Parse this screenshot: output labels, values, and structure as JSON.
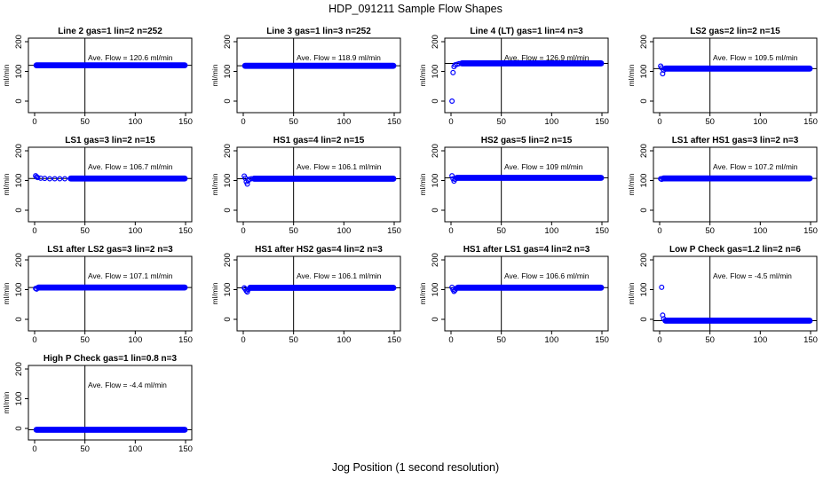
{
  "figure": {
    "title": "HDP_091211  Sample Flow Shapes",
    "xlabel": "Jog Position (1 second resolution)",
    "point_color": "#0000ff"
  },
  "chart_data": [
    {
      "type": "scatter",
      "title": "Line 2 gas=1 lin=2 n=252",
      "ylabel": "ml/min",
      "xlim": [
        0,
        150
      ],
      "ylim": [
        0,
        200
      ],
      "xticks": [
        0,
        50,
        100,
        150
      ],
      "yticks": [
        0,
        100,
        200
      ],
      "vline_x": 50,
      "hline_y": 120.6,
      "annotation": "Ave. Flow =  120.6  ml/min",
      "points": [],
      "flat_from": 1,
      "flat_to": 150,
      "flat_y": 120.6
    },
    {
      "type": "scatter",
      "title": "Line 3 gas=1 lin=3 n=252",
      "ylabel": "ml/min",
      "xlim": [
        0,
        150
      ],
      "ylim": [
        0,
        200
      ],
      "xticks": [
        0,
        50,
        100,
        150
      ],
      "yticks": [
        0,
        100,
        200
      ],
      "vline_x": 50,
      "hline_y": 118.9,
      "annotation": "Ave. Flow =  118.9  ml/min",
      "points": [],
      "flat_from": 1,
      "flat_to": 150,
      "flat_y": 118.9
    },
    {
      "type": "scatter",
      "title": "Line 4 (LT) gas=1 lin=4 n=3",
      "ylabel": "ml/min",
      "xlim": [
        0,
        150
      ],
      "ylim": [
        0,
        200
      ],
      "xticks": [
        0,
        50,
        100,
        150
      ],
      "yticks": [
        0,
        100,
        200
      ],
      "vline_x": 50,
      "hline_y": 126.9,
      "annotation": "Ave. Flow =  126.9  ml/min",
      "points": [
        [
          1,
          0
        ],
        [
          2,
          96
        ],
        [
          3,
          116
        ],
        [
          4,
          122
        ],
        [
          6,
          124
        ],
        [
          8,
          126
        ]
      ],
      "flat_from": 10,
      "flat_to": 150,
      "flat_y": 127
    },
    {
      "type": "scatter",
      "title": "LS2 gas=2 lin=2 n=15",
      "ylabel": "ml/min",
      "xlim": [
        0,
        150
      ],
      "ylim": [
        0,
        200
      ],
      "xticks": [
        0,
        50,
        100,
        150
      ],
      "yticks": [
        0,
        100,
        200
      ],
      "vline_x": 50,
      "hline_y": 109.5,
      "annotation": "Ave. Flow =  109.5  ml/min",
      "points": [
        [
          1,
          118
        ],
        [
          2,
          112
        ],
        [
          3,
          92
        ],
        [
          4,
          104
        ]
      ],
      "flat_from": 5,
      "flat_to": 150,
      "flat_y": 109.5
    },
    {
      "type": "scatter",
      "title": "LS1 gas=3 lin=2 n=15",
      "ylabel": "ml/min",
      "xlim": [
        0,
        150
      ],
      "ylim": [
        0,
        200
      ],
      "xticks": [
        0,
        50,
        100,
        150
      ],
      "yticks": [
        0,
        100,
        200
      ],
      "vline_x": 50,
      "hline_y": 106.7,
      "annotation": "Ave. Flow =  106.7  ml/min",
      "points": [
        [
          1,
          116
        ],
        [
          2,
          112
        ],
        [
          3,
          110
        ],
        [
          6,
          108
        ],
        [
          10,
          107
        ],
        [
          15,
          106
        ],
        [
          20,
          106
        ],
        [
          25,
          106
        ],
        [
          30,
          106
        ]
      ],
      "flat_from": 35,
      "flat_to": 150,
      "flat_y": 106.7
    },
    {
      "type": "scatter",
      "title": "HS1 gas=4 lin=2 n=15",
      "ylabel": "ml/min",
      "xlim": [
        0,
        150
      ],
      "ylim": [
        0,
        200
      ],
      "xticks": [
        0,
        50,
        100,
        150
      ],
      "yticks": [
        0,
        100,
        200
      ],
      "vline_x": 50,
      "hline_y": 106.1,
      "annotation": "Ave. Flow =  106.1  ml/min",
      "points": [
        [
          1,
          115
        ],
        [
          2,
          108
        ],
        [
          3,
          96
        ],
        [
          4,
          88
        ],
        [
          5,
          100
        ],
        [
          6,
          104
        ],
        [
          8,
          106
        ]
      ],
      "flat_from": 10,
      "flat_to": 150,
      "flat_y": 106.1
    },
    {
      "type": "scatter",
      "title": "HS2 gas=5 lin=2 n=15",
      "ylabel": "ml/min",
      "xlim": [
        0,
        150
      ],
      "ylim": [
        0,
        200
      ],
      "xticks": [
        0,
        50,
        100,
        150
      ],
      "yticks": [
        0,
        100,
        200
      ],
      "vline_x": 50,
      "hline_y": 109,
      "annotation": "Ave. Flow =  109  ml/min",
      "points": [
        [
          1,
          116
        ],
        [
          2,
          106
        ],
        [
          3,
          98
        ],
        [
          4,
          104
        ]
      ],
      "flat_from": 5,
      "flat_to": 150,
      "flat_y": 109
    },
    {
      "type": "scatter",
      "title": "LS1 after HS1 gas=3 lin=2 n=3",
      "ylabel": "ml/min",
      "xlim": [
        0,
        150
      ],
      "ylim": [
        0,
        200
      ],
      "xticks": [
        0,
        50,
        100,
        150
      ],
      "yticks": [
        0,
        100,
        200
      ],
      "vline_x": 50,
      "hline_y": 107.2,
      "annotation": "Ave. Flow =  107.2  ml/min",
      "points": [
        [
          1,
          106
        ],
        [
          2,
          104
        ]
      ],
      "flat_from": 3,
      "flat_to": 150,
      "flat_y": 107.2
    },
    {
      "type": "scatter",
      "title": "LS1 after LS2 gas=3 lin=2 n=3",
      "ylabel": "ml/min",
      "xlim": [
        0,
        150
      ],
      "ylim": [
        0,
        200
      ],
      "xticks": [
        0,
        50,
        100,
        150
      ],
      "yticks": [
        0,
        100,
        200
      ],
      "vline_x": 50,
      "hline_y": 107.1,
      "annotation": "Ave. Flow =  107.1  ml/min",
      "points": [
        [
          1,
          104
        ],
        [
          2,
          102
        ]
      ],
      "flat_from": 3,
      "flat_to": 150,
      "flat_y": 107.1
    },
    {
      "type": "scatter",
      "title": "HS1 after HS2 gas=4 lin=2 n=3",
      "ylabel": "ml/min",
      "xlim": [
        0,
        150
      ],
      "ylim": [
        0,
        200
      ],
      "xticks": [
        0,
        50,
        100,
        150
      ],
      "yticks": [
        0,
        100,
        200
      ],
      "vline_x": 50,
      "hline_y": 106.1,
      "annotation": "Ave. Flow =  106.1  ml/min",
      "points": [
        [
          1,
          106
        ],
        [
          2,
          102
        ],
        [
          3,
          96
        ],
        [
          4,
          92
        ],
        [
          5,
          100
        ]
      ],
      "flat_from": 6,
      "flat_to": 150,
      "flat_y": 106.1
    },
    {
      "type": "scatter",
      "title": "HS1 after LS1 gas=4 lin=2 n=3",
      "ylabel": "ml/min",
      "xlim": [
        0,
        150
      ],
      "ylim": [
        0,
        200
      ],
      "xticks": [
        0,
        50,
        100,
        150
      ],
      "yticks": [
        0,
        100,
        200
      ],
      "vline_x": 50,
      "hline_y": 106.6,
      "annotation": "Ave. Flow =  106.6  ml/min",
      "points": [
        [
          1,
          108
        ],
        [
          2,
          100
        ],
        [
          3,
          94
        ],
        [
          4,
          98
        ],
        [
          5,
          104
        ]
      ],
      "flat_from": 6,
      "flat_to": 150,
      "flat_y": 106.6
    },
    {
      "type": "scatter",
      "title": "Low P Check gas=1.2 lin=2 n=6",
      "ylabel": "ml/min",
      "xlim": [
        0,
        150
      ],
      "ylim": [
        0,
        200
      ],
      "xticks": [
        0,
        50,
        100,
        150
      ],
      "yticks": [
        0,
        100,
        200
      ],
      "vline_x": 50,
      "hline_y": -4.5,
      "annotation": "Ave. Flow =  -4.5  ml/min",
      "points": [
        [
          2,
          108
        ],
        [
          3,
          14
        ],
        [
          4,
          2
        ]
      ],
      "flat_from": 5,
      "flat_to": 150,
      "flat_y": -4.5
    },
    {
      "type": "scatter",
      "title": "High P Check gas=1 lin=0.8 n=3",
      "ylabel": "ml/min",
      "xlim": [
        0,
        150
      ],
      "ylim": [
        0,
        200
      ],
      "xticks": [
        0,
        50,
        100,
        150
      ],
      "yticks": [
        0,
        100,
        200
      ],
      "vline_x": 50,
      "hline_y": -4.4,
      "annotation": "Ave. Flow =  -4.4  ml/min",
      "points": [],
      "flat_from": 1,
      "flat_to": 150,
      "flat_y": -4.4
    }
  ]
}
